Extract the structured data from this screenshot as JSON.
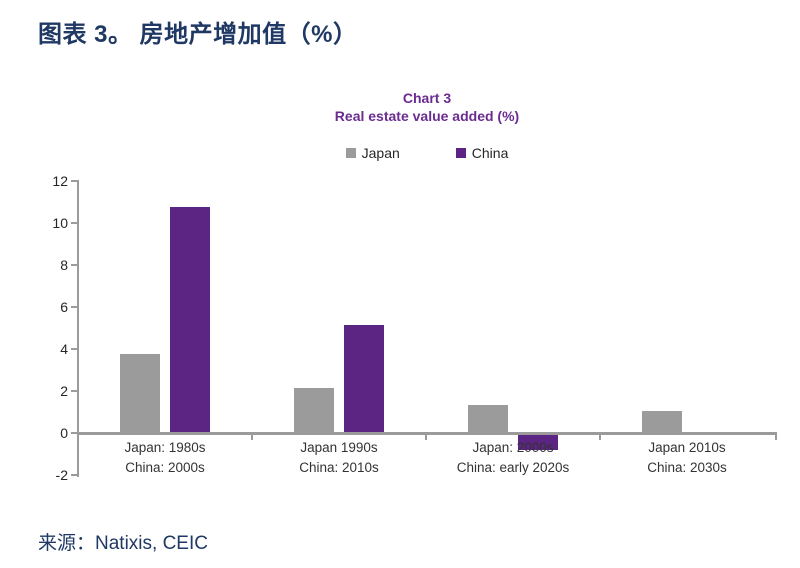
{
  "page": {
    "title": "图表 3。 房地产增加值（%）",
    "source": "来源：Natixis, CEIC"
  },
  "chart_data": {
    "type": "bar",
    "title": "Chart 3",
    "subtitle": "Real estate value added (%)",
    "categories": [
      [
        "Japan: 1980s",
        "China: 2000s"
      ],
      [
        "Japan 1990s",
        "China: 2010s"
      ],
      [
        "Japan: 2000s",
        "China: early 2020s"
      ],
      [
        "Japan 2010s",
        "China: 2030s"
      ]
    ],
    "series": [
      {
        "name": "Japan",
        "color": "#9b9b9b",
        "values": [
          3.7,
          2.1,
          1.3,
          1.0
        ]
      },
      {
        "name": "China",
        "color": "#5c2483",
        "values": [
          10.7,
          5.1,
          -0.7,
          null
        ]
      }
    ],
    "ylim": [
      -2,
      12
    ],
    "ytick_step": 2,
    "grid": false,
    "legend_position": "top-center",
    "axis_color": "#9b9b9b"
  },
  "colors": {
    "heading": "#1f3864",
    "chart_title": "#6a2c91",
    "tick_label": "#262626",
    "source": "#1f3864"
  }
}
